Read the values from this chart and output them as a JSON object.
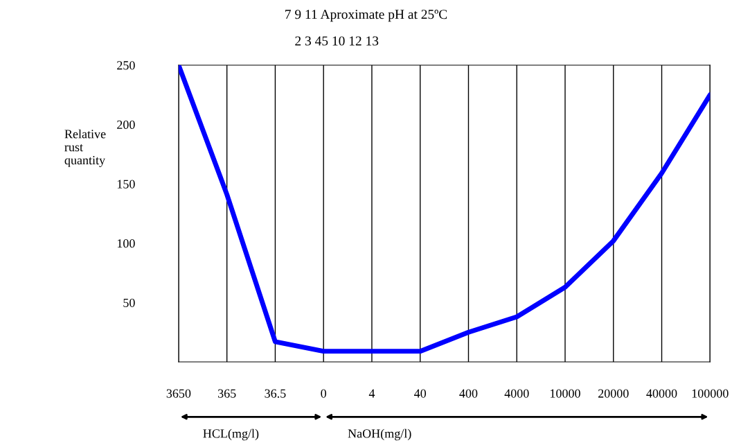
{
  "chart_data": {
    "type": "line",
    "title": "7 9 11 Aproximate pH at 25ºC",
    "subtitle": "2 3 45 10 12 13",
    "ylabel": "Relative\nrust\nquantity",
    "categories": [
      "3650",
      "365",
      "36.5",
      "0",
      "4",
      "40",
      "400",
      "4000",
      "10000",
      "20000",
      "40000",
      "100000"
    ],
    "series": [
      {
        "color": "#0000ff",
        "values": [
          250,
          141,
          17,
          9,
          9,
          9,
          25,
          38,
          63,
          102,
          159,
          225
        ]
      }
    ],
    "ylim": [
      0,
      250
    ],
    "yticks": [
      50,
      100,
      150,
      200,
      250
    ],
    "annotations": [
      "HCL(mg/l)",
      "NaOH(mg/l)"
    ],
    "grid": "x",
    "line_style": "solid",
    "marker": "none"
  }
}
